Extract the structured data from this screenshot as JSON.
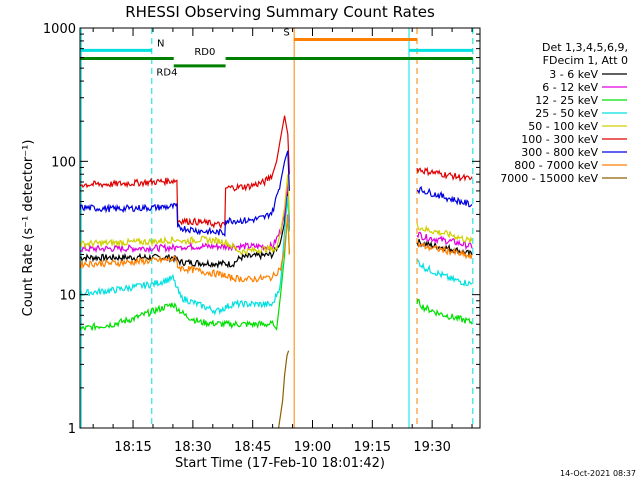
{
  "chart_data": {
    "type": "line",
    "title": "RHESSI Observing Summary Count Rates",
    "xlabel": "Start Time (17-Feb-10 18:01:42)",
    "ylabel": "Count Rate (s⁻¹ detector⁻¹)",
    "yscale": "log",
    "ylim": [
      1,
      1000
    ],
    "xlim_min": [
      1.7,
      102.0
    ],
    "x_ticks": [
      {
        "min": 15,
        "label": "18:15"
      },
      {
        "min": 30,
        "label": "18:30"
      },
      {
        "min": 45,
        "label": "18:45"
      },
      {
        "min": 60,
        "label": "19:00"
      },
      {
        "min": 75,
        "label": "19:15"
      },
      {
        "min": 90,
        "label": "19:30"
      }
    ],
    "y_ticks": [
      {
        "v": 1,
        "label": "1"
      },
      {
        "v": 10,
        "label": "10"
      },
      {
        "v": 100,
        "label": "100"
      },
      {
        "v": 1000,
        "label": "1000"
      }
    ],
    "legend": {
      "placement": "right",
      "header": [
        "Det 1,3,4,5,6,9,",
        "FDecim 1, Att 0"
      ],
      "entries": [
        "3 - 6 keV",
        "6 - 12 keV",
        "12 - 25 keV",
        "25 - 50 keV",
        "50 - 100 keV",
        "100 - 300 keV",
        "300 - 800 keV",
        "800 - 7000 keV",
        "7000 - 15000 keV"
      ]
    },
    "colors": {
      "3 - 6 keV": "#000000",
      "6 - 12 keV": "#e000e0",
      "12 - 25 keV": "#00e000",
      "25 - 50 keV": "#00e0e0",
      "50 - 100 keV": "#d0d000",
      "100 - 300 keV": "#e00000",
      "300 - 800 keV": "#0000e0",
      "800 - 7000 keV": "#ff8000",
      "7000 - 15000 keV": "#8b6000",
      "rd": "#008000"
    },
    "series": [
      {
        "name": "3 - 6 keV",
        "points": [
          [
            1.7,
            19
          ],
          [
            25,
            19
          ],
          [
            27,
            17.5
          ],
          [
            40,
            17
          ],
          [
            42,
            19
          ],
          [
            50,
            20
          ],
          [
            52,
            25
          ],
          [
            53,
            35
          ],
          [
            53.8,
            60
          ],
          [
            54.2,
            30
          ],
          [
            54.2,
            null
          ],
          [
            86.2,
            null
          ],
          [
            86.2,
            25
          ],
          [
            88,
            24
          ],
          [
            95,
            22
          ],
          [
            100,
            20
          ]
        ]
      },
      {
        "name": "6 - 12 keV",
        "points": [
          [
            1.7,
            22
          ],
          [
            26,
            22.5
          ],
          [
            27,
            23
          ],
          [
            40,
            23
          ],
          [
            42,
            23
          ],
          [
            50,
            23
          ],
          [
            52,
            30
          ],
          [
            53,
            40
          ],
          [
            53.8,
            70
          ],
          [
            54.2,
            35
          ],
          [
            54.2,
            null
          ],
          [
            86.2,
            null
          ],
          [
            86.2,
            29
          ],
          [
            88,
            27
          ],
          [
            95,
            25
          ],
          [
            100,
            23
          ]
        ]
      },
      {
        "name": "12 - 25 keV",
        "points": [
          [
            1.7,
            5.5
          ],
          [
            6,
            5.8
          ],
          [
            10,
            6
          ],
          [
            15,
            6.6
          ],
          [
            20,
            7.5
          ],
          [
            25,
            8.5
          ],
          [
            28,
            7
          ],
          [
            32,
            6.2
          ],
          [
            38,
            6
          ],
          [
            42,
            6
          ],
          [
            50,
            6
          ],
          [
            51,
            5.5
          ],
          [
            52,
            10
          ],
          [
            53,
            20
          ],
          [
            53.8,
            40
          ],
          [
            54.2,
            20
          ],
          [
            54.2,
            null
          ],
          [
            86.2,
            null
          ],
          [
            86.2,
            9
          ],
          [
            88,
            8
          ],
          [
            92,
            7.2
          ],
          [
            100,
            6.2
          ]
        ]
      },
      {
        "name": "25 - 50 keV",
        "points": [
          [
            1.7,
            10.2
          ],
          [
            10,
            10.8
          ],
          [
            20,
            12
          ],
          [
            25,
            13.3
          ],
          [
            27,
            9.5
          ],
          [
            32,
            8.3
          ],
          [
            36,
            7.5
          ],
          [
            40,
            8.5
          ],
          [
            45,
            8.5
          ],
          [
            50,
            8.4
          ],
          [
            52,
            12
          ],
          [
            53,
            30
          ],
          [
            53.8,
            55
          ],
          [
            54.2,
            30
          ],
          [
            54.2,
            null
          ],
          [
            86.2,
            null
          ],
          [
            86.2,
            18
          ],
          [
            88,
            16
          ],
          [
            95,
            13
          ],
          [
            100,
            12
          ]
        ]
      },
      {
        "name": "50 - 100 keV",
        "points": [
          [
            1.7,
            24
          ],
          [
            10,
            24.5
          ],
          [
            20,
            25
          ],
          [
            26,
            26
          ],
          [
            27,
            25
          ],
          [
            32,
            26
          ],
          [
            38,
            25
          ],
          [
            42,
            21
          ],
          [
            48,
            22
          ],
          [
            51,
            22
          ],
          [
            52,
            30
          ],
          [
            53,
            45
          ],
          [
            53.8,
            80
          ],
          [
            54.2,
            40
          ],
          [
            54.2,
            null
          ],
          [
            86.2,
            null
          ],
          [
            86.2,
            33
          ],
          [
            88,
            31
          ],
          [
            95,
            28
          ],
          [
            100,
            25
          ]
        ]
      },
      {
        "name": "100 - 300 keV",
        "points": [
          [
            1.7,
            67
          ],
          [
            10,
            67.5
          ],
          [
            20,
            70
          ],
          [
            26,
            72
          ],
          [
            26.2,
            36
          ],
          [
            32,
            35
          ],
          [
            38,
            33
          ],
          [
            38.2,
            63
          ],
          [
            44,
            65
          ],
          [
            48,
            70
          ],
          [
            50,
            80
          ],
          [
            51,
            100
          ],
          [
            52,
            150
          ],
          [
            53,
            220
          ],
          [
            53.8,
            160
          ],
          [
            54.2,
            80
          ],
          [
            54.2,
            null
          ],
          [
            86.2,
            null
          ],
          [
            86.2,
            88
          ],
          [
            88,
            85
          ],
          [
            95,
            78
          ],
          [
            100,
            73
          ]
        ]
      },
      {
        "name": "300 - 800 keV",
        "points": [
          [
            1.7,
            45
          ],
          [
            10,
            44
          ],
          [
            20,
            45
          ],
          [
            26,
            46
          ],
          [
            26.2,
            32
          ],
          [
            32,
            30
          ],
          [
            38,
            29
          ],
          [
            38.2,
            36
          ],
          [
            44,
            36
          ],
          [
            48,
            38
          ],
          [
            50,
            42
          ],
          [
            52,
            70
          ],
          [
            53,
            100
          ],
          [
            53.8,
            120
          ],
          [
            54.2,
            60
          ],
          [
            54.2,
            null
          ],
          [
            86.2,
            null
          ],
          [
            86.2,
            62
          ],
          [
            88,
            60
          ],
          [
            95,
            52
          ],
          [
            100,
            47
          ]
        ]
      },
      {
        "name": "800 - 7000 keV",
        "points": [
          [
            1.7,
            17
          ],
          [
            10,
            17.2
          ],
          [
            20,
            18
          ],
          [
            26,
            18.5
          ],
          [
            26.2,
            16
          ],
          [
            32,
            15
          ],
          [
            38,
            14
          ],
          [
            38.2,
            13.5
          ],
          [
            44,
            13
          ],
          [
            50,
            13.5
          ],
          [
            52,
            16
          ],
          [
            53,
            22
          ],
          [
            53.8,
            40
          ],
          [
            54.2,
            20
          ],
          [
            54.2,
            null
          ],
          [
            86.2,
            null
          ],
          [
            86.2,
            24
          ],
          [
            88,
            23
          ],
          [
            95,
            21
          ],
          [
            100,
            19
          ]
        ]
      },
      {
        "name": "7000 - 15000 keV",
        "points": [
          [
            51.5,
            1
          ],
          [
            52.5,
            1.6
          ],
          [
            53,
            2.5
          ],
          [
            53.6,
            3.5
          ],
          [
            54,
            3.8
          ]
        ]
      }
    ],
    "state_bars": [
      {
        "label": "N",
        "color_key": "25 - 50 keV",
        "level": 680,
        "segments": [
          [
            1.7,
            19.7
          ],
          [
            84.2,
            100.2
          ]
        ],
        "label_at": 21,
        "label_anchor": "start"
      },
      {
        "label": "S",
        "color_key": "800 - 7000 keV",
        "level": 820,
        "segments": [
          [
            55.4,
            86.2
          ]
        ],
        "label_at": 54.3,
        "label_anchor": "end"
      },
      {
        "label": "RD0",
        "color_key": "rd",
        "level": 590,
        "segments": [
          [
            1.7,
            25.2
          ],
          [
            38.2,
            100.2
          ]
        ],
        "label_at": 33,
        "label_anchor": "middle",
        "label_level": 670
      },
      {
        "label": "RD4",
        "color_key": "rd",
        "level": 520,
        "segments": [
          [
            25.2,
            38.2
          ]
        ],
        "label_at": 23.5,
        "label_anchor": "middle",
        "label_level": 470
      }
    ],
    "vlines": [
      {
        "min": 2.0,
        "color_key": "25 - 50 keV",
        "style": "solid"
      },
      {
        "min": 19.7,
        "color_key": "25 - 50 keV",
        "style": "dashed"
      },
      {
        "min": 84.2,
        "color_key": "25 - 50 keV",
        "style": "solid"
      },
      {
        "min": 100.2,
        "color_key": "25 - 50 keV",
        "style": "dashed"
      },
      {
        "min": 55.4,
        "color_key": "800 - 7000 keV",
        "style": "solid"
      },
      {
        "min": 86.2,
        "color_key": "800 - 7000 keV",
        "style": "dashed"
      }
    ],
    "timestamp": "14-Oct-2021 08:37",
    "grid": false
  }
}
